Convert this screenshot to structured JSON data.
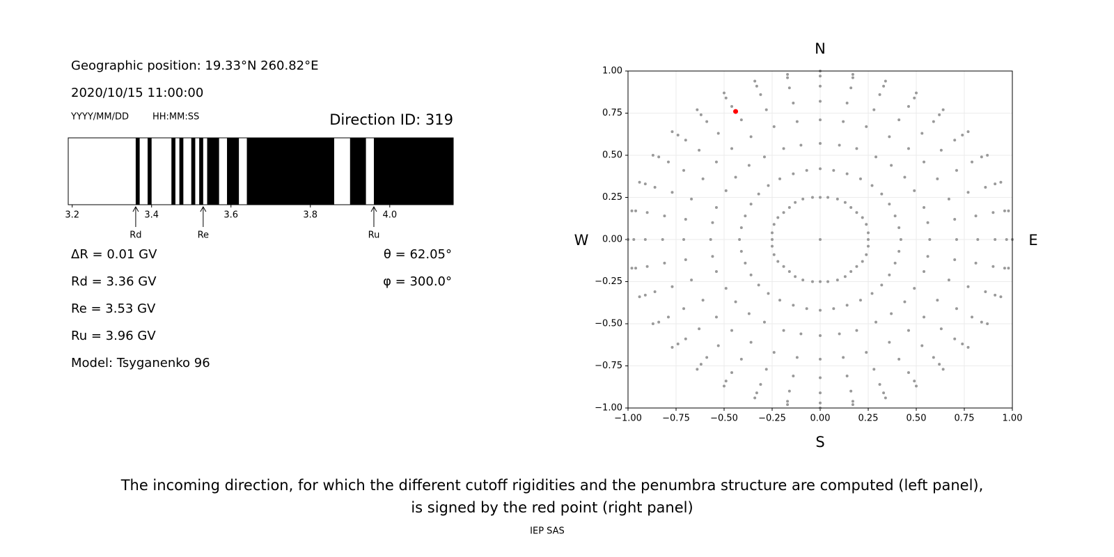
{
  "info": {
    "position": "Geographic position: 19.33°N 260.82°E",
    "datetime": "2020/10/15 11:00:00",
    "date_format": "YYYY/MM/DD",
    "time_format": "HH:MM:SS",
    "direction": "Direction ID: 319",
    "lines": [
      "ΔR = 0.01 GV",
      "Rd = 3.36 GV",
      "Re = 3.53 GV",
      "Ru = 3.96 GV",
      "Model: Tsyganenko 96"
    ],
    "angles": [
      "θ = 62.05°",
      "φ = 300.0°"
    ]
  },
  "chart_data": [
    {
      "type": "penumbra",
      "color": "#000000",
      "xlim": [
        3.19,
        4.16
      ],
      "xticks": [
        3.2,
        3.4,
        3.6,
        3.8,
        {
          "value": 4,
          "label": "4.0"
        }
      ],
      "bands": [
        [
          3.36,
          3.37
        ],
        [
          3.39,
          3.4
        ],
        [
          3.45,
          3.46
        ],
        [
          3.47,
          3.48
        ],
        [
          3.5,
          3.51
        ],
        [
          3.52,
          3.53
        ],
        [
          3.54,
          3.57
        ],
        [
          3.59,
          3.62
        ],
        [
          3.64,
          3.86
        ],
        [
          3.9,
          3.94
        ],
        [
          3.96,
          4.16
        ]
      ],
      "markers": [
        {
          "label": "Rd",
          "value": 3.36
        },
        {
          "label": "Re",
          "value": 3.53
        },
        {
          "label": "Ru",
          "value": 3.96
        }
      ]
    },
    {
      "type": "scatter",
      "grid": true,
      "xlim": [
        -1,
        1
      ],
      "ylim": [
        -1,
        1
      ],
      "xticks": [
        {
          "value": -1,
          "label": "−1.00"
        },
        {
          "value": -0.75,
          "label": "−0.75"
        },
        {
          "value": -0.5,
          "label": "−0.50"
        },
        {
          "value": -0.25,
          "label": "−0.25"
        },
        {
          "value": 0,
          "label": "0.00"
        },
        {
          "value": 0.25,
          "label": "0.25"
        },
        {
          "value": 0.5,
          "label": "0.50"
        },
        {
          "value": 0.75,
          "label": "0.75"
        },
        {
          "value": 1,
          "label": "1.00"
        }
      ],
      "yticks": [
        {
          "value": -1,
          "label": "−1.00"
        },
        {
          "value": -0.75,
          "label": "−0.75"
        },
        {
          "value": -0.5,
          "label": "−0.50"
        },
        {
          "value": -0.25,
          "label": "−0.25"
        },
        {
          "value": 0,
          "label": "0.00"
        },
        {
          "value": 0.25,
          "label": "0.25"
        },
        {
          "value": 0.5,
          "label": "0.50"
        },
        {
          "value": 0.75,
          "label": "0.75"
        },
        {
          "value": 1,
          "label": "1.00"
        }
      ],
      "annotations": [
        "N",
        "S",
        "W",
        "E"
      ],
      "series": [
        {
          "color": "#999999",
          "x": [
            0,
            0,
            0.04,
            0.09,
            0.13,
            0.16,
            0.19,
            0.22,
            0.24,
            0.25,
            0.25,
            0.25,
            0.24,
            0.22,
            0.19,
            0.16,
            0.13,
            0.09,
            0.04,
            0,
            -0.04,
            -0.09,
            -0.13,
            -0.16,
            -0.19,
            -0.22,
            -0.24,
            -0.25,
            -0.25,
            -0.25,
            -0.24,
            -0.22,
            -0.19,
            -0.16,
            -0.13,
            -0.09,
            -0.04,
            0,
            0.07,
            0.14,
            0.21,
            0.27,
            0.32,
            0.36,
            0.39,
            0.41,
            0.42,
            0.41,
            0.39,
            0.36,
            0.32,
            0.27,
            0.21,
            0.14,
            0.07,
            0,
            -0.07,
            -0.14,
            -0.21,
            -0.27,
            -0.32,
            -0.36,
            -0.39,
            -0.41,
            -0.42,
            -0.41,
            -0.39,
            -0.36,
            -0.32,
            -0.27,
            -0.21,
            -0.14,
            -0.07,
            0,
            0.1,
            0.19,
            0.29,
            0.37,
            0.44,
            0.49,
            0.54,
            0.56,
            0.57,
            0.56,
            0.54,
            0.49,
            0.44,
            0.37,
            0.29,
            0.19,
            0.1,
            0,
            -0.1,
            -0.19,
            -0.29,
            -0.37,
            -0.44,
            -0.49,
            -0.54,
            -0.56,
            -0.57,
            -0.56,
            -0.54,
            -0.49,
            -0.44,
            -0.37,
            -0.29,
            -0.19,
            -0.1,
            0,
            0.12,
            0.24,
            0.36,
            0.46,
            0.54,
            0.61,
            0.67,
            0.7,
            0.71,
            0.7,
            0.67,
            0.61,
            0.54,
            0.46,
            0.36,
            0.24,
            0.12,
            0,
            -0.12,
            -0.24,
            -0.36,
            -0.46,
            -0.54,
            -0.61,
            -0.67,
            -0.7,
            -0.71,
            -0.7,
            -0.67,
            -0.61,
            -0.54,
            -0.46,
            -0.36,
            -0.24,
            -0.12,
            0,
            0.14,
            0.28,
            0.41,
            0.53,
            0.63,
            0.71,
            0.77,
            0.81,
            0.82,
            0.81,
            0.77,
            0.71,
            0.63,
            0.53,
            0.41,
            0.28,
            0.14,
            0,
            -0.14,
            -0.28,
            -0.41,
            -0.53,
            -0.63,
            -0.71,
            -0.77,
            -0.81,
            -0.82,
            -0.81,
            -0.77,
            -0.71,
            -0.63,
            -0.53,
            -0.41,
            -0.28,
            -0.14,
            0,
            0.16,
            0.31,
            0.46,
            0.59,
            0.7,
            0.79,
            0.86,
            0.9,
            0.91,
            0.9,
            0.86,
            0.79,
            0.7,
            0.59,
            0.46,
            0.31,
            0.16,
            0,
            -0.16,
            -0.31,
            -0.46,
            -0.59,
            -0.7,
            -0.79,
            -0.86,
            -0.9,
            -0.91,
            -0.9,
            -0.86,
            -0.79,
            -0.7,
            -0.59,
            -0.46,
            -0.31,
            -0.16,
            0,
            0.17,
            0.33,
            0.49,
            0.62,
            0.74,
            0.84,
            0.91,
            0.96,
            0.97,
            0.96,
            0.91,
            0.84,
            0.74,
            0.62,
            0.49,
            0.33,
            0.17,
            0,
            -0.17,
            -0.33,
            -0.49,
            -0.62,
            -0.74,
            -0.84,
            -0.91,
            -0.96,
            -0.97,
            -0.96,
            -0.91,
            -0.84,
            -0.74,
            -0.62,
            -0.49,
            -0.33,
            -0.17,
            0,
            0.17,
            0.34,
            0.5,
            0.64,
            0.77,
            0.87,
            0.94,
            0.98,
            1,
            0.98,
            0.94,
            0.87,
            0.77,
            0.64,
            0.5,
            0.34,
            0.17,
            0,
            -0.17,
            -0.34,
            -0.5,
            -0.64,
            -0.77,
            -0.87,
            -0.94,
            -0.98,
            -1,
            -0.98,
            -0.94,
            -0.87,
            -0.77,
            -0.64,
            -0.5,
            -0.34,
            -0.17
          ],
          "values": [
            0,
            0.25,
            0.25,
            0.24,
            0.22,
            0.19,
            0.16,
            0.13,
            0.09,
            0.04,
            0,
            -0.04,
            -0.09,
            -0.13,
            -0.16,
            -0.19,
            -0.22,
            -0.24,
            -0.25,
            -0.25,
            -0.25,
            -0.24,
            -0.22,
            -0.19,
            -0.16,
            -0.13,
            -0.09,
            -0.04,
            0,
            0.04,
            0.09,
            0.13,
            0.16,
            0.19,
            0.22,
            0.24,
            0.25,
            0.42,
            0.41,
            0.39,
            0.36,
            0.32,
            0.27,
            0.21,
            0.14,
            0.07,
            0,
            -0.07,
            -0.14,
            -0.21,
            -0.27,
            -0.32,
            -0.36,
            -0.39,
            -0.41,
            -0.42,
            -0.41,
            -0.39,
            -0.36,
            -0.32,
            -0.27,
            -0.21,
            -0.14,
            -0.07,
            0,
            0.07,
            0.14,
            0.21,
            0.27,
            0.32,
            0.36,
            0.39,
            0.41,
            0.57,
            0.56,
            0.54,
            0.49,
            0.44,
            0.37,
            0.29,
            0.19,
            0.1,
            0,
            -0.1,
            -0.19,
            -0.29,
            -0.37,
            -0.44,
            -0.49,
            -0.54,
            -0.56,
            -0.57,
            -0.56,
            -0.54,
            -0.49,
            -0.44,
            -0.37,
            -0.29,
            -0.19,
            -0.1,
            0,
            0.1,
            0.19,
            0.29,
            0.37,
            0.44,
            0.49,
            0.54,
            0.56,
            0.71,
            0.7,
            0.67,
            0.61,
            0.54,
            0.46,
            0.36,
            0.24,
            0.12,
            0,
            -0.12,
            -0.24,
            -0.36,
            -0.46,
            -0.54,
            -0.61,
            -0.67,
            -0.7,
            -0.71,
            -0.7,
            -0.67,
            -0.61,
            -0.54,
            -0.46,
            -0.36,
            -0.24,
            -0.12,
            0,
            0.12,
            0.24,
            0.36,
            0.46,
            0.54,
            0.61,
            0.67,
            0.7,
            0.82,
            0.81,
            0.77,
            0.71,
            0.63,
            0.53,
            0.41,
            0.28,
            0.14,
            0,
            -0.14,
            -0.28,
            -0.41,
            -0.53,
            -0.63,
            -0.71,
            -0.77,
            -0.81,
            -0.82,
            -0.81,
            -0.77,
            -0.71,
            -0.63,
            -0.53,
            -0.41,
            -0.28,
            -0.14,
            0,
            0.14,
            0.28,
            0.41,
            0.53,
            0.63,
            0.71,
            0.77,
            0.81,
            0.91,
            0.9,
            0.86,
            0.79,
            0.7,
            0.59,
            0.46,
            0.31,
            0.16,
            0,
            -0.16,
            -0.31,
            -0.46,
            -0.59,
            -0.7,
            -0.79,
            -0.86,
            -0.9,
            -0.91,
            -0.9,
            -0.86,
            -0.79,
            -0.7,
            -0.59,
            -0.46,
            -0.31,
            -0.16,
            0,
            0.16,
            0.31,
            0.46,
            0.59,
            0.7,
            0.79,
            0.86,
            0.9,
            0.97,
            0.96,
            0.91,
            0.84,
            0.74,
            0.62,
            0.49,
            0.33,
            0.17,
            0,
            -0.17,
            -0.33,
            -0.49,
            -0.62,
            -0.74,
            -0.84,
            -0.91,
            -0.96,
            -0.97,
            -0.96,
            -0.91,
            -0.84,
            -0.74,
            -0.62,
            -0.49,
            -0.33,
            -0.17,
            0,
            0.17,
            0.33,
            0.49,
            0.62,
            0.74,
            0.84,
            0.91,
            0.96,
            1,
            0.98,
            0.94,
            0.87,
            0.77,
            0.64,
            0.5,
            0.34,
            0.17,
            0,
            -0.17,
            -0.34,
            -0.5,
            -0.64,
            -0.77,
            -0.87,
            -0.94,
            -0.98,
            -1,
            -0.98,
            -0.94,
            -0.87,
            -0.77,
            -0.64,
            -0.5,
            -0.34,
            -0.17,
            0,
            0.17,
            0.34,
            0.5,
            0.64,
            0.77,
            0.87,
            0.94,
            0.98
          ]
        },
        {
          "color": "#ff0000",
          "x": [
            -0.44
          ],
          "values": [
            0.76
          ]
        }
      ]
    }
  ],
  "caption": [
    "The incoming direction, for which the different cutoff rigidities and the penumbra structure are computed (left panel),",
    "is signed by the red point (right panel)"
  ],
  "footer": "IEP SAS"
}
